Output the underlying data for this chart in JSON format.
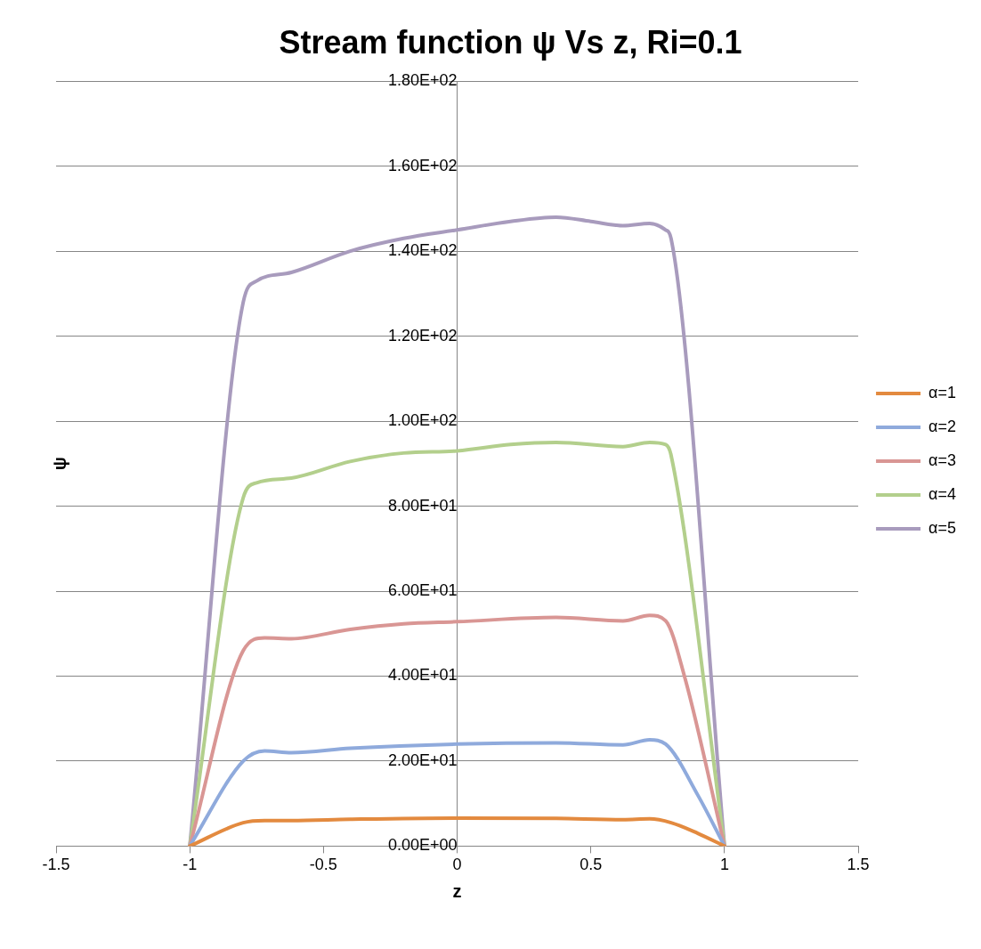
{
  "chart_data": {
    "type": "line",
    "title": "Stream function ψ Vs z, Ri=0.1",
    "xlabel": "z",
    "ylabel": "ψ",
    "xlim": [
      -1.5,
      1.5
    ],
    "xticks": [
      -1.5,
      -1,
      -0.5,
      0,
      0.5,
      1,
      1.5
    ],
    "ylim": [
      0,
      180
    ],
    "yticks": [
      {
        "value": 0,
        "label": "0.00E+00"
      },
      {
        "value": 20,
        "label": "2.00E+01"
      },
      {
        "value": 40,
        "label": "4.00E+01"
      },
      {
        "value": 60,
        "label": "6.00E+01"
      },
      {
        "value": 80,
        "label": "8.00E+01"
      },
      {
        "value": 100,
        "label": "1.00E+02"
      },
      {
        "value": 120,
        "label": "1.20E+02"
      },
      {
        "value": 140,
        "label": "1.40E+02"
      },
      {
        "value": 160,
        "label": "1.60E+02"
      },
      {
        "value": 180,
        "label": "1.80E+02"
      }
    ],
    "grid": "y",
    "legend": "right",
    "marker": "none",
    "series": [
      {
        "name": "α=1",
        "color": "#e38a3f",
        "x": [
          -1,
          -0.8,
          -0.72,
          -0.62,
          -0.4,
          0,
          0.37,
          0.62,
          0.72,
          0.8,
          0.9,
          1
        ],
        "values": [
          0,
          5.5,
          6,
          6,
          6.3,
          6.6,
          6.5,
          6.2,
          6.4,
          5.5,
          3,
          0
        ]
      },
      {
        "name": "α=2",
        "color": "#8faadc",
        "x": [
          -1,
          -0.8,
          -0.72,
          -0.62,
          -0.4,
          0,
          0.37,
          0.62,
          0.72,
          0.78,
          0.9,
          1
        ],
        "values": [
          0,
          20,
          22.4,
          22,
          23,
          24,
          24.3,
          23.8,
          25,
          24,
          12,
          0
        ]
      },
      {
        "name": "α=3",
        "color": "#d99694",
        "x": [
          -1,
          -0.8,
          -0.72,
          -0.62,
          -0.4,
          -0.2,
          0,
          0.37,
          0.62,
          0.72,
          0.78,
          0.85,
          1
        ],
        "values": [
          0,
          46,
          49,
          48.8,
          51,
          52.3,
          52.8,
          53.8,
          53,
          54.3,
          53,
          40,
          0
        ]
      },
      {
        "name": "α=4",
        "color": "#b3cf8c",
        "x": [
          -1,
          -0.8,
          -0.75,
          -0.62,
          -0.4,
          -0.2,
          0,
          0.2,
          0.37,
          0.62,
          0.72,
          0.78,
          0.8,
          1
        ],
        "values": [
          0,
          82,
          85.5,
          86.6,
          90.5,
          92.5,
          93,
          94.5,
          95,
          94,
          95,
          94.5,
          92,
          0
        ]
      },
      {
        "name": "α=5",
        "color": "#a89bbd",
        "x": [
          -1,
          -0.8,
          -0.75,
          -0.62,
          -0.4,
          -0.2,
          0,
          0.2,
          0.37,
          0.5,
          0.62,
          0.72,
          0.78,
          0.8,
          1
        ],
        "values": [
          0,
          128,
          133,
          135,
          140,
          143,
          145,
          147,
          148,
          147,
          146,
          146.5,
          145,
          143,
          0
        ]
      }
    ]
  }
}
